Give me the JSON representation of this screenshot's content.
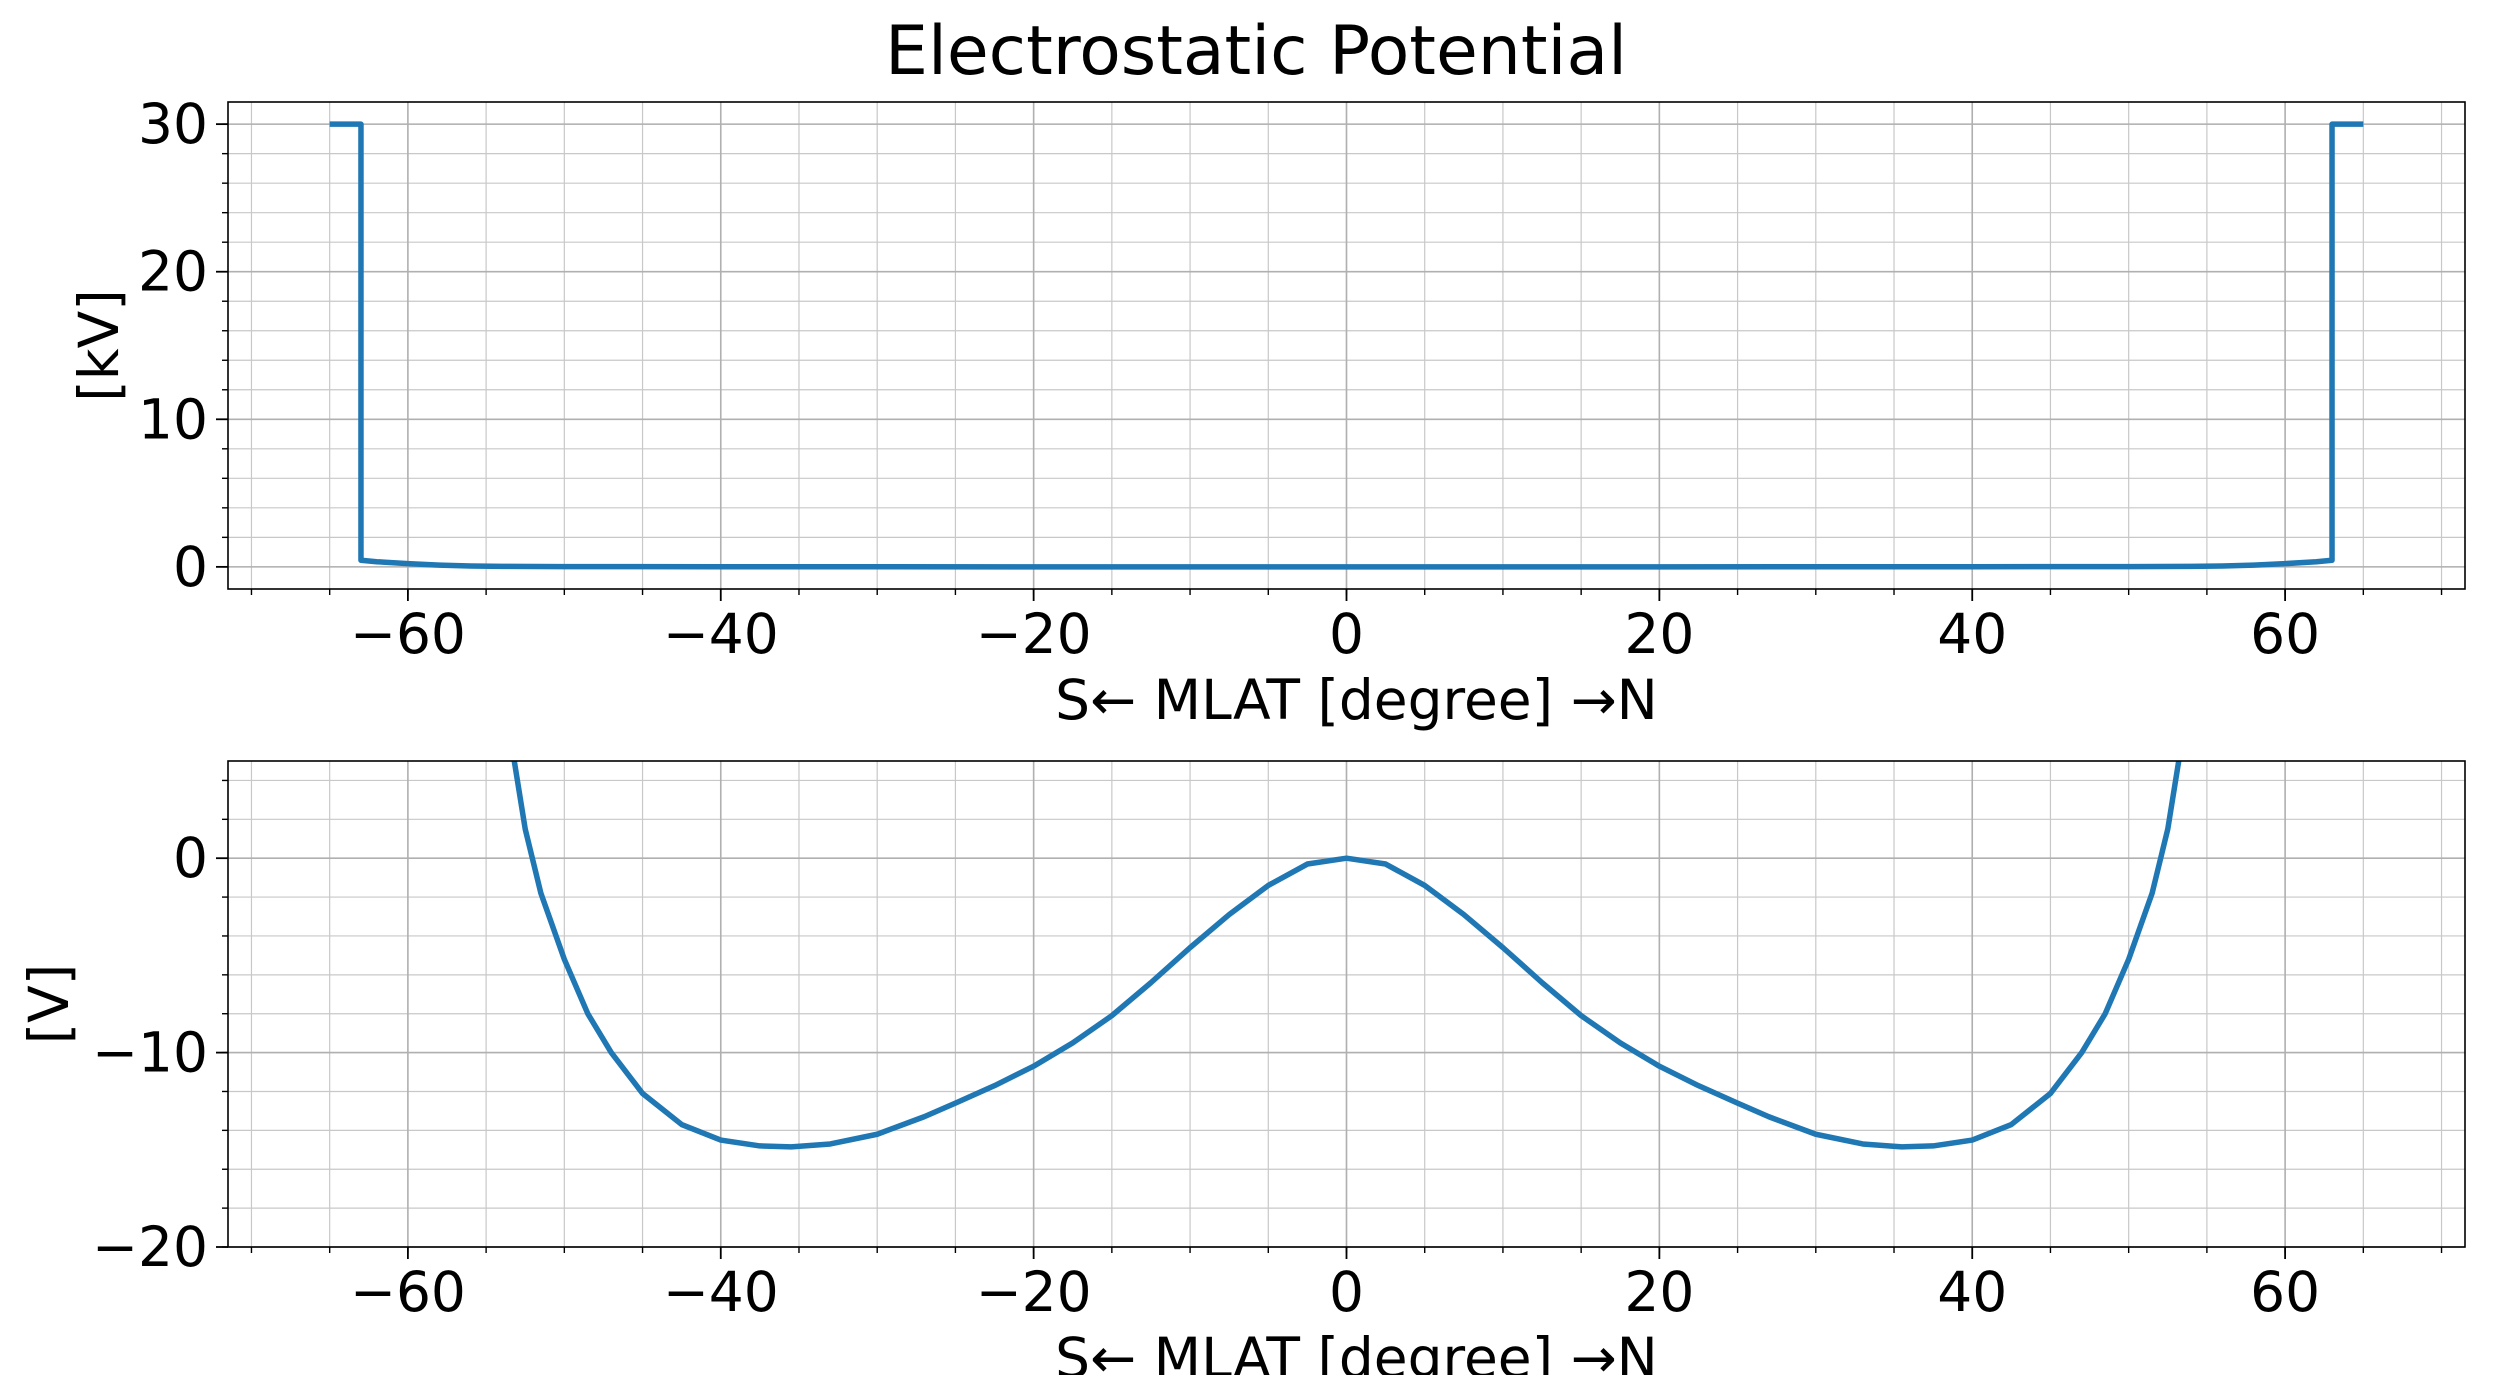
{
  "title": "Electrostatic Potential",
  "chart_data": [
    {
      "type": "line",
      "xlabel": "S← MLAT [degree] →N",
      "ylabel": "[kV]",
      "xlim": [
        -71.5,
        71.5
      ],
      "ylim": [
        -1.5,
        31.5
      ],
      "xticks": [
        -60,
        -40,
        -20,
        0,
        20,
        40,
        60
      ],
      "xtick_labels": [
        "−60",
        "−40",
        "−20",
        "0",
        "20",
        "40",
        "60"
      ],
      "yticks": [
        0,
        10,
        20,
        30
      ],
      "ytick_labels": [
        "0",
        "10",
        "20",
        "30"
      ],
      "grid": true,
      "minor_grid": true,
      "color": "#1f77b4",
      "x": [
        -65,
        -63,
        -63,
        -62,
        -60,
        -58,
        -56,
        -54,
        -50,
        -40,
        -30,
        -20,
        -10,
        0,
        10,
        20,
        30,
        40,
        50,
        54,
        56,
        58,
        60,
        62,
        63,
        63,
        65
      ],
      "y": [
        30,
        30,
        0.45,
        0.35,
        0.22,
        0.12,
        0.06,
        0.03,
        0.02,
        0.01,
        0.01,
        0.0,
        0.0,
        0.0,
        0.0,
        0.0,
        0.01,
        0.01,
        0.02,
        0.03,
        0.06,
        0.12,
        0.22,
        0.35,
        0.45,
        30,
        30
      ]
    },
    {
      "type": "line",
      "xlabel": "S← MLAT [degree] →N",
      "ylabel": "[V]",
      "xlim": [
        -71.5,
        71.5
      ],
      "ylim": [
        -20,
        5
      ],
      "xticks": [
        -60,
        -40,
        -20,
        0,
        20,
        40,
        60
      ],
      "xtick_labels": [
        "−60",
        "−40",
        "−20",
        "0",
        "20",
        "40",
        "60"
      ],
      "yticks": [
        -20,
        -10,
        0
      ],
      "ytick_labels": [
        "−20",
        "−10",
        "0"
      ],
      "grid": true,
      "minor_grid": true,
      "color": "#1f77b4",
      "x": [
        -53.2,
        -52.5,
        -51.5,
        -50,
        -48.5,
        -47,
        -45,
        -42.5,
        -40,
        -37.5,
        -35.5,
        -33,
        -30,
        -27,
        -25,
        -22.5,
        -20,
        -17.5,
        -15,
        -12.5,
        -10,
        -7.5,
        -5,
        -2.5,
        0,
        2.5,
        5,
        7.5,
        10,
        12.5,
        15,
        17.5,
        20,
        22.5,
        25,
        27,
        30,
        33,
        35.5,
        37.5,
        40,
        42.5,
        45,
        47,
        48.5,
        50,
        51.5,
        52.5,
        53.2
      ],
      "y": [
        5,
        1.5,
        -1.8,
        -5.2,
        -8,
        -10,
        -12.1,
        -13.7,
        -14.5,
        -14.8,
        -14.85,
        -14.7,
        -14.2,
        -13.3,
        -12.6,
        -11.7,
        -10.7,
        -9.5,
        -8.1,
        -6.4,
        -4.6,
        -2.9,
        -1.4,
        -0.3,
        0.0,
        -0.3,
        -1.4,
        -2.9,
        -4.6,
        -6.4,
        -8.1,
        -9.5,
        -10.7,
        -11.7,
        -12.6,
        -13.3,
        -14.2,
        -14.7,
        -14.85,
        -14.8,
        -14.5,
        -13.7,
        -12.1,
        -10,
        -8,
        -5.2,
        -1.8,
        1.5,
        5
      ]
    }
  ]
}
